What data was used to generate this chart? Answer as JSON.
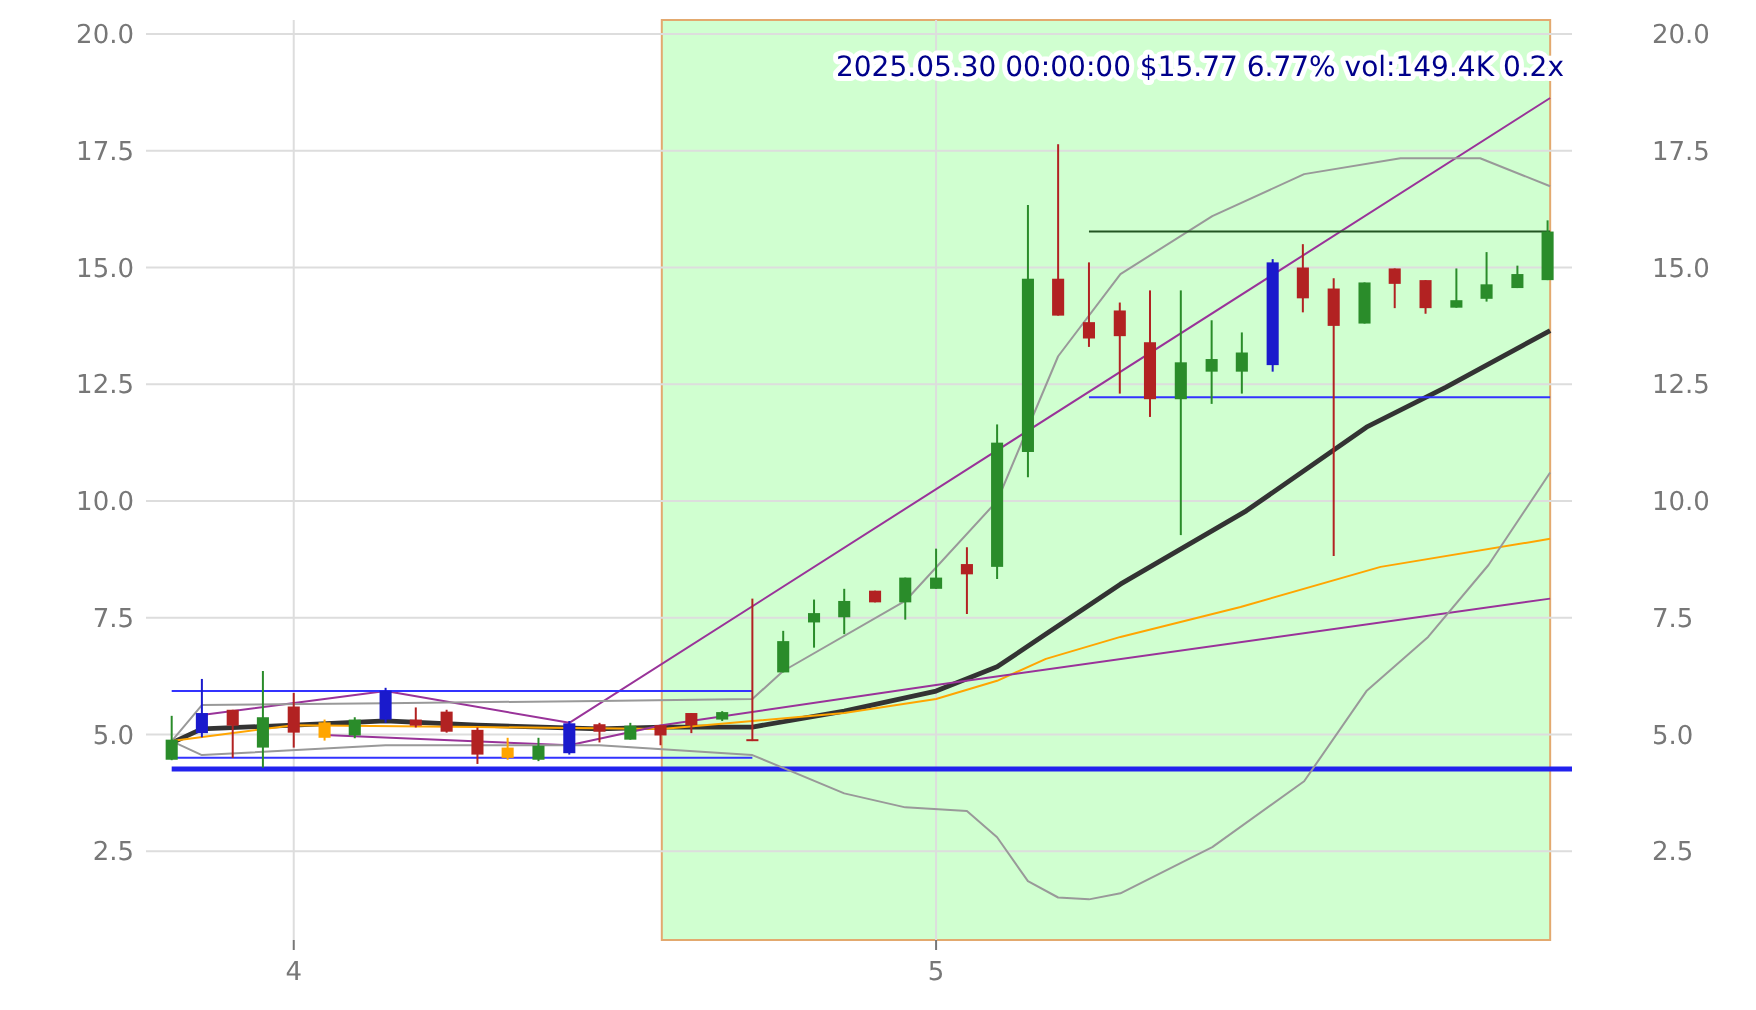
{
  "chart_data": {
    "type": "candlestick",
    "title": "2025.05.30 00:00:00 $15.77 6.77% vol:149.4K 0.2x",
    "x": [
      3.81,
      3.857,
      3.905,
      3.952,
      4,
      4.048,
      4.095,
      4.143,
      4.19,
      4.238,
      4.286,
      4.333,
      4.381,
      4.429,
      4.476,
      4.524,
      4.571,
      4.619,
      4.667,
      4.714,
      4.762,
      4.81,
      4.857,
      4.905,
      4.952,
      5,
      5.048,
      5.095,
      5.143,
      5.19,
      5.238,
      5.286,
      5.333,
      5.381,
      5.429,
      5.476,
      5.524,
      5.571,
      5.619,
      5.667,
      5.714,
      5.762,
      5.81,
      5.857,
      5.905,
      5.952
    ],
    "ohlc": [
      [
        4.46,
        5.4,
        4.45,
        4.89
      ],
      [
        5.03,
        6.19,
        4.94,
        5.46
      ],
      [
        5.53,
        5.53,
        4.5,
        5.19
      ],
      [
        4.72,
        6.36,
        4.29,
        5.37
      ],
      [
        5.6,
        5.89,
        4.72,
        5.04
      ],
      [
        5.26,
        5.32,
        4.87,
        4.93
      ],
      [
        4.98,
        5.37,
        4.92,
        5.32
      ],
      [
        5.32,
        6,
        5.25,
        5.94
      ],
      [
        5.32,
        5.58,
        5.15,
        5.19
      ],
      [
        5.49,
        5.53,
        5.04,
        5.06
      ],
      [
        5.1,
        5.15,
        4.37,
        4.57
      ],
      [
        4.72,
        4.93,
        4.46,
        4.5
      ],
      [
        4.46,
        4.93,
        4.43,
        4.76
      ],
      [
        4.6,
        5.29,
        4.57,
        5.24
      ],
      [
        5.22,
        5.25,
        4.83,
        5.06
      ],
      [
        4.89,
        5.25,
        4.89,
        5.19
      ],
      [
        5.2,
        5.2,
        4.77,
        4.98
      ],
      [
        5.46,
        5.46,
        5.03,
        5.2
      ],
      [
        5.32,
        5.5,
        5.29,
        5.48
      ],
      [
        4.9,
        7.91,
        4.86,
        4.86
      ],
      [
        6.33,
        7.22,
        6.33,
        7
      ],
      [
        7.4,
        7.89,
        6.86,
        7.6
      ],
      [
        7.51,
        8.12,
        7.15,
        7.86
      ],
      [
        8.08,
        8.08,
        7.83,
        7.83
      ],
      [
        7.83,
        8.36,
        7.46,
        8.36
      ],
      [
        8.12,
        8.98,
        8.12,
        8.36
      ],
      [
        8.65,
        9.01,
        7.58,
        8.43
      ],
      [
        8.59,
        11.64,
        8.33,
        11.25
      ],
      [
        11.05,
        16.34,
        10.51,
        14.76
      ],
      [
        14.76,
        17.64,
        13.97,
        13.97
      ],
      [
        13.83,
        15.11,
        13.3,
        13.48
      ],
      [
        14.08,
        14.25,
        12.3,
        13.53
      ],
      [
        13.4,
        14.51,
        11.8,
        12.18
      ],
      [
        12.18,
        14.51,
        9.27,
        12.97
      ],
      [
        12.77,
        13.87,
        12.08,
        13.04
      ],
      [
        12.77,
        13.61,
        12.3,
        13.18
      ],
      [
        12.91,
        15.18,
        12.77,
        15.11
      ],
      [
        15,
        15.5,
        14.04,
        14.34
      ],
      [
        14.55,
        14.77,
        8.82,
        13.75
      ],
      [
        13.8,
        14.68,
        13.8,
        14.68
      ],
      [
        14.98,
        14.98,
        14.13,
        14.65
      ],
      [
        14.73,
        14.73,
        14.01,
        14.13
      ],
      [
        14.14,
        14.98,
        14.14,
        14.3
      ],
      [
        14.33,
        15.33,
        14.27,
        14.64
      ],
      [
        14.56,
        15.04,
        14.56,
        14.86
      ],
      [
        14.73,
        16.01,
        14.73,
        15.77
      ]
    ],
    "colors": [
      "#2a8c2a",
      "#1a1acc",
      "#b22222",
      "#2a8c2a",
      "#b22222",
      "#ffa500",
      "#2a8c2a",
      "#1a1acc",
      "#b22222",
      "#b22222",
      "#b22222",
      "#ffa500",
      "#2a8c2a",
      "#1a1acc",
      "#b22222",
      "#2a8c2a",
      "#b22222",
      "#b22222",
      "#2a8c2a",
      "#b22222",
      "#2a8c2a",
      "#2a8c2a",
      "#2a8c2a",
      "#b22222",
      "#2a8c2a",
      "#2a8c2a",
      "#b22222",
      "#2a8c2a",
      "#2a8c2a",
      "#b22222",
      "#b22222",
      "#b22222",
      "#b22222",
      "#2a8c2a",
      "#2a8c2a",
      "#2a8c2a",
      "#1a1acc",
      "#b22222",
      "#b22222",
      "#2a8c2a",
      "#b22222",
      "#b22222",
      "#2a8c2a",
      "#2a8c2a",
      "#2a8c2a",
      "#2a8c2a"
    ],
    "series": [
      {
        "type": "line",
        "color": "#333333",
        "x": [
          3.81,
          3.857,
          4,
          4.143,
          4.286,
          4.476,
          4.573,
          4.714,
          4.857,
          5,
          5.095,
          5.171,
          5.287,
          5.483,
          5.67,
          5.794,
          5.956
        ],
        "values": [
          4.82,
          5.12,
          5.2,
          5.29,
          5.2,
          5.12,
          5.16,
          5.16,
          5.5,
          5.93,
          6.45,
          7.15,
          8.22,
          9.79,
          11.58,
          12.44,
          13.65
        ]
      },
      {
        "type": "line",
        "color": "#ffa500",
        "x": [
          3.81,
          4,
          4.286,
          4.573,
          4.857,
          5,
          5.095,
          5.171,
          5.287,
          5.474,
          5.692,
          5.956
        ],
        "values": [
          4.86,
          5.2,
          5.16,
          5.12,
          5.46,
          5.76,
          6.15,
          6.62,
          7.09,
          7.73,
          8.59,
          9.19
        ]
      },
      {
        "type": "line",
        "color": "#993399",
        "x": [
          3.857,
          4.143,
          4.429,
          5.956
        ],
        "values": [
          5.42,
          5.93,
          5.25,
          18.63
        ]
      },
      {
        "type": "line",
        "color": "#993399",
        "x": [
          4.048,
          4.429,
          4.573,
          5,
          5.956
        ],
        "values": [
          4.99,
          4.77,
          5.2,
          6.06,
          7.91
        ]
      },
      {
        "type": "line",
        "color": "#999999",
        "x": [
          3.81,
          3.857,
          4.143,
          4.476,
          4.714,
          4.762,
          4.952,
          5.095,
          5.19,
          5.287,
          5.43,
          5.573,
          5.723,
          5.847,
          5.956
        ],
        "values": [
          4.86,
          5.63,
          5.67,
          5.72,
          5.76,
          6.36,
          7.86,
          10,
          13.1,
          14.86,
          16.1,
          17,
          17.34,
          17.34,
          16.74
        ]
      },
      {
        "type": "line",
        "color": "#999999",
        "x": [
          3.81,
          3.857,
          4.143,
          4.476,
          4.714,
          4.857,
          4.952,
          5.048,
          5.095,
          5.143,
          5.19,
          5.238,
          5.287,
          5.43,
          5.573,
          5.67,
          5.766,
          5.86,
          5.956
        ],
        "values": [
          4.86,
          4.56,
          4.77,
          4.77,
          4.56,
          3.74,
          3.44,
          3.36,
          2.8,
          1.86,
          1.51,
          1.47,
          1.6,
          2.59,
          4,
          5.93,
          7.09,
          8.63,
          10.61
        ]
      },
      {
        "type": "line",
        "color": "#3333ff",
        "x": [
          3.81,
          4.714
        ],
        "values": [
          5.93,
          5.93
        ]
      },
      {
        "type": "line",
        "color": "#3333ff",
        "x": [
          3.81,
          4.714
        ],
        "values": [
          4.5,
          4.5
        ]
      },
      {
        "type": "line",
        "color": "#3333ff",
        "x": [
          5.238,
          5.956
        ],
        "values": [
          12.22,
          12.22
        ]
      },
      {
        "type": "line",
        "color": "#225522",
        "x": [
          5.238,
          5.956
        ],
        "values": [
          15.77,
          15.77
        ]
      }
    ],
    "ref_lines": [
      {
        "axis": "y",
        "value": 4.26,
        "color": "#2222ee"
      }
    ],
    "bands": [
      {
        "axis": "x",
        "from": 4.573,
        "to": 5.956,
        "color": "#ccffcc"
      }
    ],
    "xlim": [
      3.77,
      5.99
    ],
    "xticks": [
      4,
      5
    ],
    "ylim": [
      0.6,
      20.3
    ],
    "yticks": [
      {
        "value": 2.5,
        "label": "2.5"
      },
      {
        "value": 5,
        "label": "5.0"
      },
      {
        "value": 7.5,
        "label": "7.5"
      },
      {
        "value": 10,
        "label": "10.0"
      },
      {
        "value": 12.5,
        "label": "12.5"
      },
      {
        "value": 15,
        "label": "15.0"
      },
      {
        "value": 17.5,
        "label": "17.5"
      },
      {
        "value": 20,
        "label": "20.0"
      }
    ],
    "y2lim": [
      0.6,
      20.3
    ],
    "y2ticks": [
      {
        "value": 2.5,
        "label": "2.5"
      },
      {
        "value": 5,
        "label": "5.0"
      },
      {
        "value": 7.5,
        "label": "7.5"
      },
      {
        "value": 10,
        "label": "10.0"
      },
      {
        "value": 12.5,
        "label": "12.5"
      },
      {
        "value": 15,
        "label": "15.0"
      },
      {
        "value": 17.5,
        "label": "17.5"
      },
      {
        "value": 20,
        "label": "20.0"
      }
    ],
    "grid": true
  }
}
